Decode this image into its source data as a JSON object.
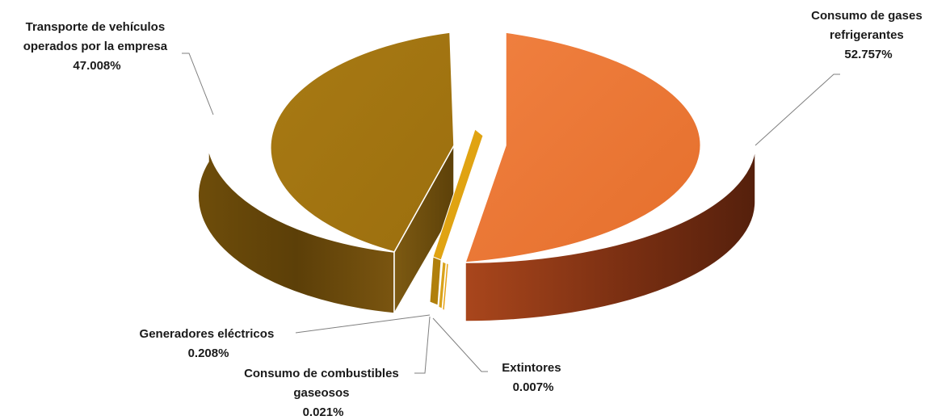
{
  "chart_data": {
    "type": "pie",
    "variant": "3d-exploded",
    "title": "",
    "legend": "none",
    "slices": [
      {
        "name_lines": [
          "Consumo de gases",
          "refrigerantes"
        ],
        "value_label": "52.757%",
        "value": 52.757,
        "color": "#ed7632"
      },
      {
        "name_lines": [
          "Extintores"
        ],
        "value_label": "0.007%",
        "value": 0.007,
        "color": "#e8a317"
      },
      {
        "name_lines": [
          "Consumo de combustibles",
          "gaseosos"
        ],
        "value_label": "0.021%",
        "value": 0.021,
        "color": "#d9a21b"
      },
      {
        "name_lines": [
          "Generadores eléctricos"
        ],
        "value_label": "0.208%",
        "value": 0.208,
        "color": "#e0a312"
      },
      {
        "name_lines": [
          "Transporte de vehículos",
          "operados por la empresa"
        ],
        "value_label": "47.008%",
        "value": 47.008,
        "color": "#a4740f"
      }
    ]
  }
}
